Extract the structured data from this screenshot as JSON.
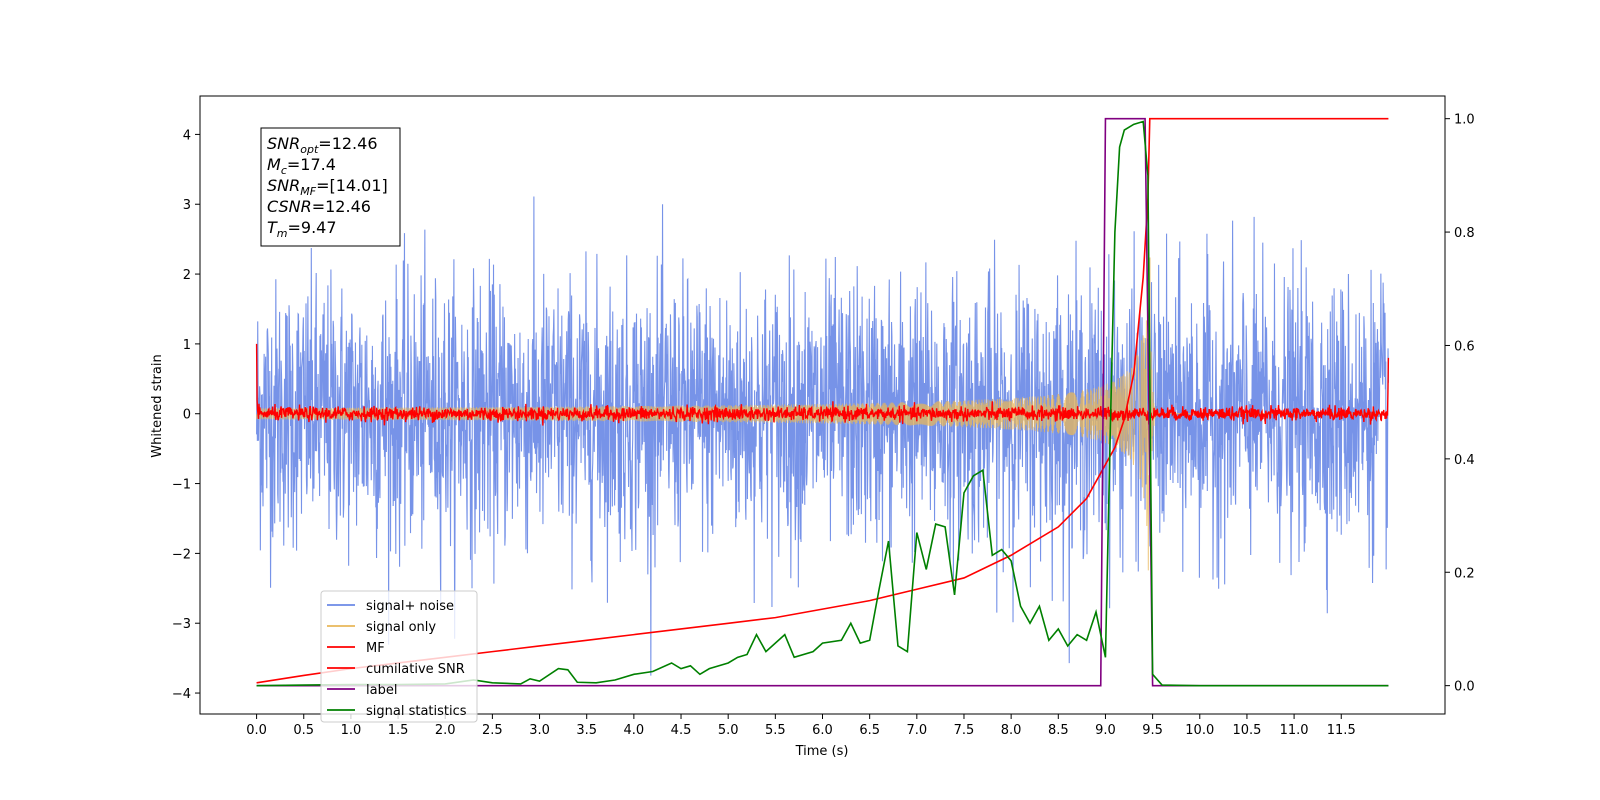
{
  "chart_data": {
    "type": "line",
    "xlabel": "Time (s)",
    "ylabel": "Whitened strain",
    "xlim": [
      -0.6,
      12.6
    ],
    "ylim": [
      -4.3,
      4.55
    ],
    "y2lim": [
      -0.05,
      1.04
    ],
    "x_ticks": [
      "0.0",
      "0.5",
      "1.0",
      "1.5",
      "2.0",
      "2.5",
      "3.0",
      "3.5",
      "4.0",
      "4.5",
      "5.0",
      "5.5",
      "6.0",
      "6.5",
      "7.0",
      "7.5",
      "8.0",
      "8.5",
      "9.0",
      "9.5",
      "10.0",
      "10.5",
      "11.0",
      "11.5"
    ],
    "y_ticks": [
      "−4",
      "−3",
      "−2",
      "−1",
      "0",
      "1",
      "2",
      "3",
      "4"
    ],
    "y2_ticks": [
      "0.0",
      "0.2",
      "0.4",
      "0.6",
      "0.8",
      "1.0"
    ],
    "annotation": [
      {
        "main": "SNR",
        "sub": "opt",
        "value": "=12.46"
      },
      {
        "main": "M",
        "sub": "c",
        "value": "=17.4"
      },
      {
        "main": "SNR",
        "sub": "MF",
        "value": "=[14.01]"
      },
      {
        "main": "CSNR",
        "sub": "",
        "value": "=12.46"
      },
      {
        "main": "T",
        "sub": "m",
        "value": "=9.47"
      }
    ],
    "legend_position": "lower-left",
    "series": [
      {
        "name": "signal+ noise",
        "color": "#6b8ae6",
        "axis": "left",
        "kind": "noise",
        "amplitude_std": 0.95,
        "x_range": [
          0.0,
          12.0
        ]
      },
      {
        "name": "signal only",
        "color": "#e8b75a",
        "axis": "left",
        "kind": "chirp",
        "merger_time": 9.47,
        "peak_amplitude": 2.6,
        "x_range": [
          0.0,
          12.0
        ]
      },
      {
        "name": "MF",
        "color": "#ff0000",
        "axis": "left",
        "kind": "mf",
        "amplitude_std": 0.05,
        "x_range": [
          0.0,
          12.0
        ]
      },
      {
        "name": "cumilative SNR",
        "color": "#ff0000",
        "axis": "right",
        "points": [
          [
            0.0,
            0.005
          ],
          [
            0.5,
            0.018
          ],
          [
            1.0,
            0.03
          ],
          [
            1.5,
            0.04
          ],
          [
            2.0,
            0.05
          ],
          [
            2.5,
            0.06
          ],
          [
            3.0,
            0.07
          ],
          [
            3.5,
            0.08
          ],
          [
            4.0,
            0.09
          ],
          [
            4.5,
            0.1
          ],
          [
            5.0,
            0.11
          ],
          [
            5.5,
            0.12
          ],
          [
            6.0,
            0.135
          ],
          [
            6.5,
            0.15
          ],
          [
            7.0,
            0.17
          ],
          [
            7.5,
            0.19
          ],
          [
            8.0,
            0.23
          ],
          [
            8.5,
            0.28
          ],
          [
            8.8,
            0.33
          ],
          [
            9.0,
            0.39
          ],
          [
            9.1,
            0.42
          ],
          [
            9.2,
            0.47
          ],
          [
            9.3,
            0.55
          ],
          [
            9.4,
            0.72
          ],
          [
            9.45,
            0.86
          ],
          [
            9.47,
            1.0
          ],
          [
            12.0,
            1.0
          ]
        ]
      },
      {
        "name": "label",
        "color": "#800080",
        "axis": "right",
        "points": [
          [
            0.0,
            0.0
          ],
          [
            8.95,
            0.0
          ],
          [
            9.0,
            1.0
          ],
          [
            9.42,
            1.0
          ],
          [
            9.5,
            0.0
          ],
          [
            12.0,
            0.0
          ]
        ]
      },
      {
        "name": "signal statistics",
        "color": "#008000",
        "axis": "right",
        "points": [
          [
            0.0,
            0.0
          ],
          [
            0.5,
            0.001
          ],
          [
            1.0,
            0.002
          ],
          [
            1.5,
            0.002
          ],
          [
            2.0,
            0.003
          ],
          [
            2.3,
            0.01
          ],
          [
            2.5,
            0.005
          ],
          [
            2.8,
            0.003
          ],
          [
            2.9,
            0.012
          ],
          [
            3.0,
            0.008
          ],
          [
            3.2,
            0.03
          ],
          [
            3.3,
            0.028
          ],
          [
            3.4,
            0.006
          ],
          [
            3.6,
            0.005
          ],
          [
            3.8,
            0.01
          ],
          [
            4.0,
            0.02
          ],
          [
            4.2,
            0.025
          ],
          [
            4.4,
            0.04
          ],
          [
            4.5,
            0.03
          ],
          [
            4.6,
            0.035
          ],
          [
            4.7,
            0.02
          ],
          [
            4.8,
            0.03
          ],
          [
            5.0,
            0.04
          ],
          [
            5.1,
            0.05
          ],
          [
            5.2,
            0.055
          ],
          [
            5.3,
            0.09
          ],
          [
            5.4,
            0.06
          ],
          [
            5.6,
            0.09
          ],
          [
            5.7,
            0.05
          ],
          [
            5.9,
            0.06
          ],
          [
            6.0,
            0.075
          ],
          [
            6.2,
            0.08
          ],
          [
            6.3,
            0.11
          ],
          [
            6.4,
            0.075
          ],
          [
            6.5,
            0.08
          ],
          [
            6.6,
            0.17
          ],
          [
            6.7,
            0.255
          ],
          [
            6.8,
            0.07
          ],
          [
            6.9,
            0.06
          ],
          [
            7.0,
            0.27
          ],
          [
            7.1,
            0.205
          ],
          [
            7.2,
            0.285
          ],
          [
            7.3,
            0.28
          ],
          [
            7.4,
            0.16
          ],
          [
            7.5,
            0.34
          ],
          [
            7.6,
            0.37
          ],
          [
            7.7,
            0.38
          ],
          [
            7.8,
            0.23
          ],
          [
            7.9,
            0.24
          ],
          [
            8.0,
            0.22
          ],
          [
            8.1,
            0.14
          ],
          [
            8.2,
            0.11
          ],
          [
            8.3,
            0.14
          ],
          [
            8.4,
            0.08
          ],
          [
            8.5,
            0.1
          ],
          [
            8.6,
            0.07
          ],
          [
            8.7,
            0.09
          ],
          [
            8.8,
            0.08
          ],
          [
            8.9,
            0.13
          ],
          [
            9.0,
            0.05
          ],
          [
            9.05,
            0.44
          ],
          [
            9.1,
            0.8
          ],
          [
            9.15,
            0.95
          ],
          [
            9.2,
            0.98
          ],
          [
            9.3,
            0.99
          ],
          [
            9.4,
            0.995
          ],
          [
            9.45,
            0.9
          ],
          [
            9.5,
            0.02
          ],
          [
            9.6,
            0.001
          ],
          [
            10.0,
            0.0
          ],
          [
            12.0,
            0.0
          ]
        ]
      }
    ]
  }
}
